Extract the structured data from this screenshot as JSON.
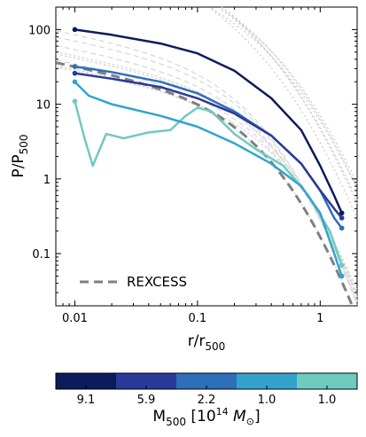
{
  "chart_data": {
    "type": "line",
    "xscale": "log",
    "yscale": "log",
    "xlim": [
      0.007,
      2.0
    ],
    "ylim": [
      0.02,
      200
    ],
    "xlabel": "r/r",
    "xlabel_sub": "500",
    "ylabel": "P/P",
    "ylabel_sub": "500",
    "x_ticks": [
      {
        "value": 0.01,
        "label": "0.01"
      },
      {
        "value": 0.1,
        "label": "0.1"
      },
      {
        "value": 1,
        "label": "1"
      }
    ],
    "y_ticks": [
      {
        "value": 0.1,
        "label": "0.1"
      },
      {
        "value": 1,
        "label": "1"
      },
      {
        "value": 10,
        "label": "10"
      },
      {
        "value": 100,
        "label": "100"
      }
    ],
    "legend": {
      "label": "REXCESS",
      "placement": "bottom-left",
      "style": "dashed",
      "color": "#7f7f7f"
    },
    "series": [
      {
        "color": "#0b1b5c",
        "x": [
          0.01,
          0.02,
          0.05,
          0.1,
          0.2,
          0.4,
          0.7,
          1.0,
          1.3,
          1.5
        ],
        "y": [
          100,
          85,
          65,
          48,
          28,
          12,
          4.5,
          1.5,
          0.6,
          0.35
        ]
      },
      {
        "color": "#2a3a9a",
        "x": [
          0.01,
          0.02,
          0.05,
          0.1,
          0.2,
          0.4,
          0.7,
          1.0,
          1.3,
          1.5
        ],
        "y": [
          26,
          22,
          17,
          12,
          7.5,
          3.8,
          1.6,
          0.7,
          0.4,
          0.3
        ]
      },
      {
        "color": "#2e6fba",
        "x": [
          0.01,
          0.013,
          0.02,
          0.05,
          0.1,
          0.2,
          0.4,
          0.7,
          1.0,
          1.3,
          1.5
        ],
        "y": [
          32,
          30,
          27,
          20,
          14,
          8,
          3.8,
          1.6,
          0.7,
          0.3,
          0.22
        ]
      },
      {
        "color": "#34a3cc",
        "x": [
          0.01,
          0.013,
          0.02,
          0.05,
          0.1,
          0.2,
          0.4,
          0.7,
          1.0,
          1.3,
          1.5
        ],
        "y": [
          20,
          13,
          10,
          7,
          5,
          3,
          1.6,
          0.8,
          0.35,
          0.1,
          0.05
        ]
      },
      {
        "color": "#6fcbbf",
        "x": [
          0.01,
          0.012,
          0.014,
          0.018,
          0.025,
          0.04,
          0.06,
          0.08,
          0.1,
          0.13,
          0.2,
          0.3,
          0.5,
          0.8,
          1.2,
          1.5
        ],
        "y": [
          11,
          3.5,
          1.5,
          4,
          3.5,
          4.2,
          4.5,
          7,
          9,
          8,
          4,
          2.5,
          1.5,
          0.6,
          0.2,
          0.07
        ]
      }
    ],
    "colorbar": {
      "labels": [
        "9.1",
        "5.9",
        "2.2",
        "1.0",
        "1.0"
      ],
      "colors": [
        "#0b1b5c",
        "#2a3a9a",
        "#2e6fba",
        "#34a3cc",
        "#6fcbbf"
      ],
      "label": "M",
      "label_sub": "500",
      "label_rest": " [10",
      "label_sup": "14",
      "label_unit": " M",
      "label_unit_sub": "⊙",
      "label_close": "]"
    }
  }
}
